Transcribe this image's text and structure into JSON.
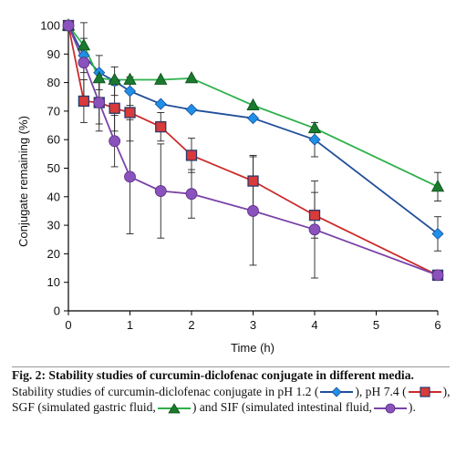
{
  "chart_data": {
    "type": "line",
    "ylabel": "Conjugate remaining (%)",
    "xlabel": "Time (h)",
    "xlim": [
      0,
      6
    ],
    "ylim": [
      0,
      100
    ],
    "x_ticks": [
      0,
      1,
      2,
      3,
      4,
      5,
      6
    ],
    "y_ticks": [
      0,
      10,
      20,
      30,
      40,
      50,
      60,
      70,
      80,
      90,
      100
    ],
    "grid": false,
    "legend": "none",
    "series": [
      {
        "key": "ph12",
        "color": "#1f4e9a",
        "marker": "diamond",
        "marker_color": "#1e90e8",
        "x": [
          0,
          0.25,
          0.5,
          0.75,
          1,
          1.5,
          2,
          3,
          4,
          6
        ],
        "y": [
          100,
          89.5,
          83.5,
          80.5,
          77,
          72.5,
          70.5,
          67.5,
          60,
          27
        ],
        "err": [
          0,
          6,
          6,
          5,
          5,
          0,
          0,
          0,
          6,
          6
        ]
      },
      {
        "key": "ph74",
        "color": "#cc2a2a",
        "marker": "square",
        "marker_color": "#d93a3a",
        "x": [
          0,
          0.25,
          0.5,
          0.75,
          1,
          1.5,
          2,
          3,
          4,
          6
        ],
        "y": [
          100,
          73.5,
          73,
          71,
          69.5,
          64.5,
          54.5,
          45.5,
          33.5,
          12.5
        ],
        "err": [
          0,
          7.5,
          7.5,
          8,
          10,
          5,
          6,
          9,
          8,
          0
        ]
      },
      {
        "key": "sgf",
        "color": "#2db04b",
        "marker": "triangle",
        "marker_color": "#1a7a2e",
        "x": [
          0,
          0.25,
          0.5,
          0.75,
          1,
          1.5,
          2,
          3,
          4,
          6
        ],
        "y": [
          100,
          93,
          81.5,
          81,
          81,
          81,
          81.5,
          72,
          64,
          43.5
        ],
        "err": [
          0,
          0,
          0,
          0,
          0,
          0,
          0,
          0,
          0,
          5
        ]
      },
      {
        "key": "sif",
        "color": "#7a43a8",
        "marker": "circle",
        "marker_color": "#8a52bd",
        "x": [
          0,
          0.25,
          0.5,
          0.75,
          1,
          1.5,
          2,
          3,
          4,
          6
        ],
        "y": [
          100,
          87,
          73,
          59.5,
          47,
          42,
          41,
          35,
          28.5,
          12.5
        ],
        "err": [
          0,
          14,
          10,
          9,
          20,
          16.5,
          8.5,
          19,
          17,
          0
        ]
      }
    ]
  },
  "caption": {
    "figure_title": "Fig. 2: Stability studies of curcumin-diclofenac conjugate in different media.",
    "parts": [
      "Stability studies of curcumin-diclofenac conjugate in pH 1.2 (",
      "), pH 7.4 (",
      "), SGF (simulated gastric fluid,",
      ") and SIF (simulated intestinal fluid,",
      ")."
    ]
  }
}
